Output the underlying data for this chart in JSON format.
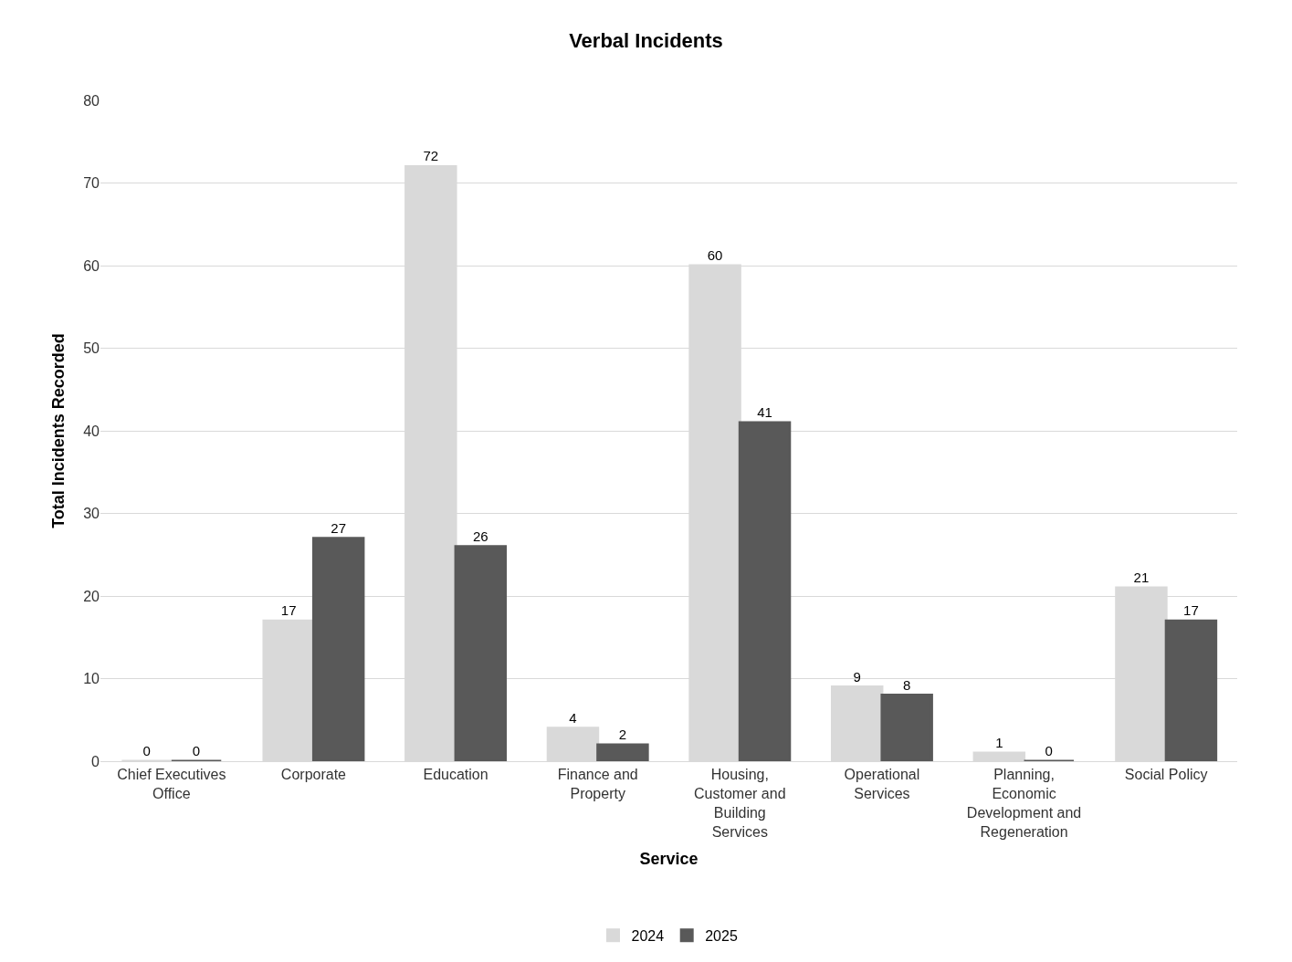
{
  "chart_data": {
    "type": "bar",
    "title": "Verbal Incidents",
    "xlabel": "Service",
    "ylabel": "Total Incidents Recorded",
    "categories": [
      "Chief Executives Office",
      "Corporate",
      "Education",
      "Finance and Property",
      "Housing, Customer and Building Services",
      "Operational Services",
      "Planning, Economic Development and Regeneration",
      "Social Policy"
    ],
    "series": [
      {
        "name": "2024",
        "color": "#d9d9d9",
        "values": [
          0,
          17,
          72,
          4,
          60,
          9,
          1,
          21
        ]
      },
      {
        "name": "2025",
        "color": "#595959",
        "values": [
          0,
          27,
          26,
          2,
          41,
          8,
          0,
          17
        ]
      }
    ],
    "ylim": [
      0,
      80
    ],
    "yticks": [
      0,
      10,
      20,
      30,
      40,
      50,
      60,
      70,
      80
    ],
    "grid": "y",
    "legend": "bottom",
    "data_labels": true
  }
}
